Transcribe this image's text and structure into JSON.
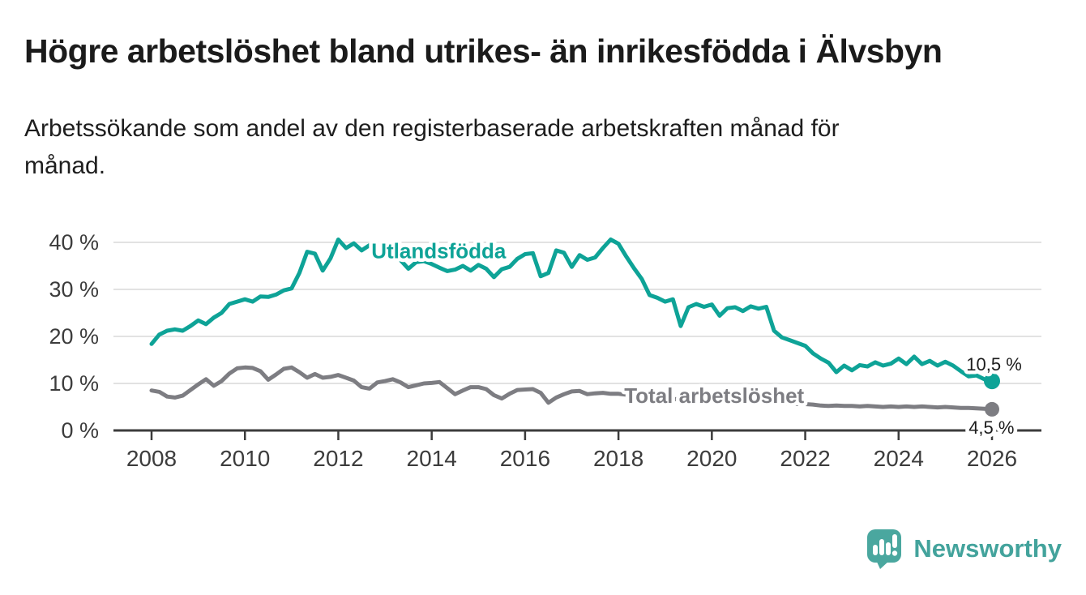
{
  "header": {
    "title": "Högre arbetslöshet bland utrikes- än inrikesfödda i Älvsbyn",
    "subtitle_lines": [
      "Arbetssökande som andel av den registerbaserade arbetskraften månad för",
      "månad."
    ]
  },
  "chart_data": {
    "type": "line",
    "title": "Högre arbetslöshet bland utrikes- än inrikesfödda i Älvsbyn",
    "subtitle": "Arbetssökande som andel av den registerbaserade arbetskraften månad för månad.",
    "xlabel": "",
    "ylabel": "",
    "unit": "%",
    "grid": true,
    "legend_position": "inline-labels",
    "x_axis": {
      "range": [
        2007.2,
        2027.05
      ],
      "ticks": [
        {
          "value": 2008,
          "label": "2008"
        },
        {
          "value": 2010,
          "label": "2010"
        },
        {
          "value": 2012,
          "label": "2012"
        },
        {
          "value": 2014,
          "label": "2014"
        },
        {
          "value": 2016,
          "label": "2016"
        },
        {
          "value": 2018,
          "label": "2018"
        },
        {
          "value": 2020,
          "label": "2020"
        },
        {
          "value": 2022,
          "label": "2022"
        },
        {
          "value": 2024,
          "label": "2024"
        },
        {
          "value": 2026,
          "label": "2026"
        }
      ]
    },
    "y_axis": {
      "range": [
        0,
        42
      ],
      "ticks": [
        {
          "value": 0,
          "label": "0 %"
        },
        {
          "value": 10,
          "label": "10 %"
        },
        {
          "value": 20,
          "label": "20 %"
        },
        {
          "value": 30,
          "label": "30 %"
        },
        {
          "value": 40,
          "label": "40 %"
        }
      ]
    },
    "style": {
      "grid_color": "#d9d9d9",
      "axis_color": "#3c3c3c",
      "tick_label_color": "#3c3c3c",
      "halo_color": "#ffffff"
    },
    "series": [
      {
        "name": "Utlandsfödda",
        "color": "#0ea397",
        "line_width": 5,
        "end_dot_radius": 10,
        "latest_value_label": "10,5 %",
        "x_start": 2008.0,
        "x_step": 0.1666667,
        "values": [
          18.4,
          20.4,
          21.2,
          21.5,
          21.2,
          22.2,
          23.4,
          22.6,
          24.0,
          25.0,
          26.9,
          27.4,
          27.9,
          27.4,
          28.5,
          28.4,
          28.9,
          29.8,
          30.2,
          33.5,
          38.0,
          37.6,
          34.0,
          36.6,
          40.6,
          38.8,
          39.8,
          38.3,
          39.4,
          38.6,
          38.8,
          38.0,
          36.2,
          34.4,
          35.8,
          36.0,
          35.4,
          34.6,
          33.9,
          34.2,
          35.0,
          34.0,
          35.2,
          34.4,
          32.6,
          34.3,
          34.8,
          36.5,
          37.5,
          37.7,
          32.8,
          33.5,
          38.3,
          37.8,
          34.8,
          37.3,
          36.3,
          36.8,
          38.8,
          40.6,
          39.7,
          37.0,
          34.5,
          32.2,
          28.8,
          28.2,
          27.4,
          27.9,
          22.2,
          26.2,
          26.9,
          26.3,
          26.8,
          24.4,
          26.0,
          26.2,
          25.4,
          26.4,
          25.9,
          26.3,
          21.2,
          19.8,
          19.2,
          18.6,
          18.0,
          16.4,
          15.3,
          14.4,
          12.4,
          13.8,
          12.8,
          13.9,
          13.6,
          14.5,
          13.8,
          14.2,
          15.3,
          14.1,
          15.7,
          14.1,
          14.8,
          13.8,
          14.6,
          13.8,
          12.6,
          11.5,
          11.7,
          10.9,
          10.5
        ]
      },
      {
        "name": "Total arbetslöshet",
        "color": "#7d7d82",
        "line_width": 5,
        "end_dot_radius": 9,
        "latest_value_label": "4,5 %",
        "x_start": 2008.0,
        "x_step": 0.1666667,
        "values": [
          8.5,
          8.2,
          7.2,
          7.0,
          7.4,
          8.6,
          9.8,
          10.9,
          9.5,
          10.5,
          12.1,
          13.2,
          13.4,
          13.3,
          12.6,
          10.8,
          11.9,
          13.1,
          13.4,
          12.4,
          11.2,
          12.0,
          11.2,
          11.4,
          11.8,
          11.2,
          10.6,
          9.2,
          8.9,
          10.2,
          10.5,
          10.9,
          10.2,
          9.2,
          9.6,
          10.0,
          10.1,
          10.3,
          9.0,
          7.7,
          8.5,
          9.2,
          9.2,
          8.8,
          7.5,
          6.8,
          7.8,
          8.6,
          8.7,
          8.8,
          8.0,
          5.9,
          7.0,
          7.7,
          8.3,
          8.4,
          7.7,
          7.9,
          8.0,
          7.8,
          7.8,
          7.6,
          7.3,
          7.1,
          7.0,
          6.9,
          6.8,
          6.7,
          6.6,
          6.6,
          6.5,
          6.5,
          6.6,
          6.8,
          6.9,
          6.8,
          6.6,
          6.4,
          6.2,
          6.0,
          5.9,
          5.8,
          5.7,
          5.6,
          5.6,
          5.5,
          5.3,
          5.2,
          5.3,
          5.2,
          5.2,
          5.1,
          5.2,
          5.1,
          5.0,
          5.1,
          5.0,
          5.1,
          5.0,
          5.1,
          5.0,
          4.9,
          5.0,
          4.9,
          4.8,
          4.8,
          4.7,
          4.6,
          4.5
        ]
      }
    ],
    "annotations": [
      {
        "text": "Utlandsfödda",
        "x": 2014.15,
        "y": 36.6,
        "color": "#0ea397",
        "bold": true,
        "size": 26,
        "anchor": "middle"
      },
      {
        "text": "Total arbetslöshet",
        "x": 2020.05,
        "y": 5.9,
        "color": "#7d7d82",
        "bold": true,
        "size": 26,
        "anchor": "middle"
      },
      {
        "text": "10,5 %",
        "x": 2025.45,
        "y": 12.8,
        "color": "#1c1c1c",
        "bold": false,
        "size": 22,
        "anchor": "start"
      },
      {
        "text": "4,5 %",
        "x": 2025.5,
        "y": -0.7,
        "color": "#1c1c1c",
        "bold": false,
        "size": 22,
        "anchor": "start"
      }
    ]
  },
  "branding": {
    "logo_text": "Newsworthy",
    "logo_color": "#4aa79f",
    "logo_icon": "speech-bubble-bar-chart"
  }
}
